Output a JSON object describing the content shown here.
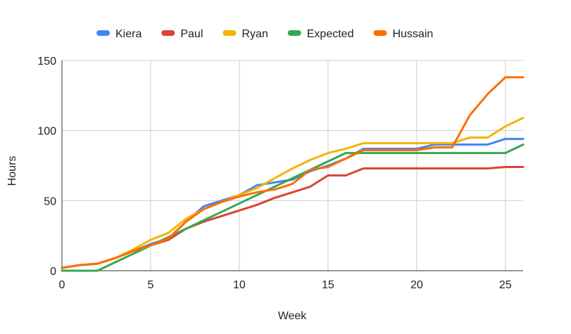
{
  "chart_data": {
    "type": "line",
    "title": "",
    "xlabel": "Week",
    "ylabel": "Hours",
    "xlim": [
      0,
      26
    ],
    "ylim": [
      0,
      150
    ],
    "x_ticks": [
      0,
      5,
      10,
      15,
      20,
      25
    ],
    "y_ticks": [
      0,
      50,
      100,
      150
    ],
    "grid": true,
    "legend_position": "top",
    "series": [
      {
        "name": "Kiera",
        "color": "#4285F4",
        "x": [
          0,
          1,
          2,
          3,
          4,
          5,
          6,
          7,
          8,
          9,
          10,
          11,
          12,
          13,
          14,
          15,
          16,
          17,
          18,
          19,
          20,
          21,
          22,
          23,
          24,
          25,
          26
        ],
        "values": [
          2,
          4,
          5,
          9,
          14,
          19,
          23,
          35,
          46,
          50,
          54,
          61,
          63,
          65,
          71,
          75,
          80,
          87,
          87,
          87,
          87,
          90,
          90,
          90,
          90,
          94,
          94
        ]
      },
      {
        "name": "Paul",
        "color": "#DB4437",
        "x": [
          0,
          1,
          2,
          3,
          4,
          5,
          6,
          7,
          8,
          9,
          10,
          11,
          12,
          13,
          14,
          15,
          16,
          17,
          18,
          19,
          20,
          21,
          22,
          23,
          24,
          25,
          26
        ],
        "values": [
          2,
          4,
          5,
          9,
          14,
          18,
          22,
          30,
          35,
          39,
          43,
          47,
          52,
          56,
          60,
          68,
          68,
          73,
          73,
          73,
          73,
          73,
          73,
          73,
          73,
          74,
          74
        ]
      },
      {
        "name": "Ryan",
        "color": "#F4B400",
        "x": [
          0,
          1,
          2,
          3,
          4,
          5,
          6,
          7,
          8,
          9,
          10,
          11,
          12,
          13,
          14,
          15,
          16,
          17,
          18,
          19,
          20,
          21,
          22,
          23,
          24,
          25,
          26
        ],
        "values": [
          2,
          4,
          5,
          9,
          15,
          22,
          27,
          37,
          44,
          49,
          54,
          59,
          66,
          73,
          79,
          84,
          87,
          91,
          91,
          91,
          91,
          91,
          91,
          95,
          95,
          103,
          109
        ]
      },
      {
        "name": "Expected",
        "color": "#34A853",
        "x": [
          0,
          1,
          2,
          3,
          4,
          5,
          6,
          7,
          8,
          9,
          10,
          11,
          12,
          13,
          14,
          15,
          16,
          17,
          18,
          19,
          20,
          21,
          22,
          23,
          24,
          25,
          26
        ],
        "values": [
          0,
          0,
          0,
          6,
          12,
          18,
          24,
          30,
          36,
          42,
          48,
          54,
          60,
          66,
          72,
          78,
          84,
          84,
          84,
          84,
          84,
          84,
          84,
          84,
          84,
          84,
          90
        ]
      },
      {
        "name": "Hussain",
        "color": "#FF6D01",
        "x": [
          0,
          1,
          2,
          3,
          4,
          5,
          6,
          7,
          8,
          9,
          10,
          11,
          12,
          13,
          14,
          15,
          16,
          17,
          18,
          19,
          20,
          21,
          22,
          23,
          24,
          25,
          26
        ],
        "values": [
          2,
          4,
          5,
          9,
          14,
          18,
          23,
          35,
          44,
          49,
          53,
          56,
          58,
          62,
          72,
          74,
          80,
          86,
          86,
          86,
          86,
          88,
          88,
          111,
          126,
          138,
          138
        ]
      }
    ]
  }
}
